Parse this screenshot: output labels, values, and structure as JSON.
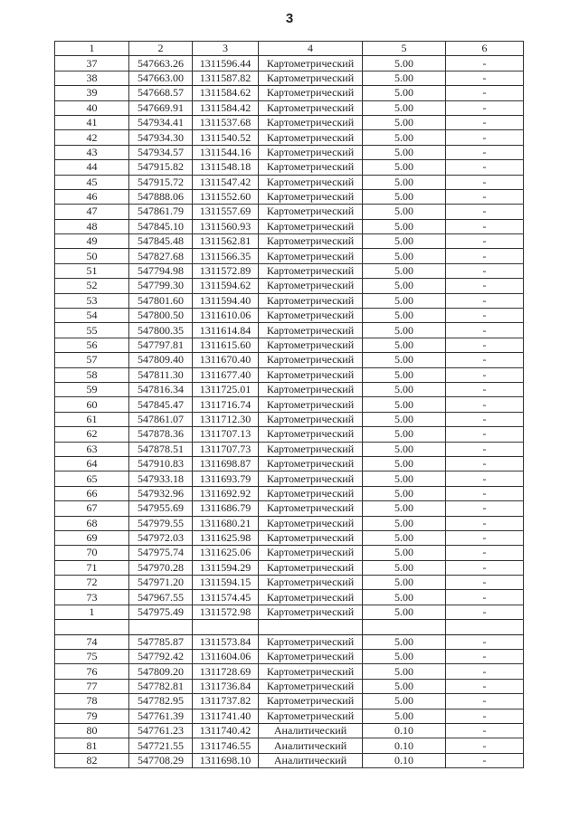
{
  "page_number": "3",
  "table": {
    "headers": [
      "1",
      "2",
      "3",
      "4",
      "5",
      "6"
    ],
    "rows": [
      [
        "37",
        "547663.26",
        "1311596.44",
        "Картометрический",
        "5.00",
        "-"
      ],
      [
        "38",
        "547663.00",
        "1311587.82",
        "Картометрический",
        "5.00",
        "-"
      ],
      [
        "39",
        "547668.57",
        "1311584.62",
        "Картометрический",
        "5.00",
        "-"
      ],
      [
        "40",
        "547669.91",
        "1311584.42",
        "Картометрический",
        "5.00",
        "-"
      ],
      [
        "41",
        "547934.41",
        "1311537.68",
        "Картометрический",
        "5.00",
        "-"
      ],
      [
        "42",
        "547934.30",
        "1311540.52",
        "Картометрический",
        "5.00",
        "-"
      ],
      [
        "43",
        "547934.57",
        "1311544.16",
        "Картометрический",
        "5.00",
        "-"
      ],
      [
        "44",
        "547915.82",
        "1311548.18",
        "Картометрический",
        "5.00",
        "-"
      ],
      [
        "45",
        "547915.72",
        "1311547.42",
        "Картометрический",
        "5.00",
        "-"
      ],
      [
        "46",
        "547888.06",
        "1311552.60",
        "Картометрический",
        "5.00",
        "-"
      ],
      [
        "47",
        "547861.79",
        "1311557.69",
        "Картометрический",
        "5.00",
        "-"
      ],
      [
        "48",
        "547845.10",
        "1311560.93",
        "Картометрический",
        "5.00",
        "-"
      ],
      [
        "49",
        "547845.48",
        "1311562.81",
        "Картометрический",
        "5.00",
        "-"
      ],
      [
        "50",
        "547827.68",
        "1311566.35",
        "Картометрический",
        "5.00",
        "-"
      ],
      [
        "51",
        "547794.98",
        "1311572.89",
        "Картометрический",
        "5.00",
        "-"
      ],
      [
        "52",
        "547799.30",
        "1311594.62",
        "Картометрический",
        "5.00",
        "-"
      ],
      [
        "53",
        "547801.60",
        "1311594.40",
        "Картометрический",
        "5.00",
        "-"
      ],
      [
        "54",
        "547800.50",
        "1311610.06",
        "Картометрический",
        "5.00",
        "-"
      ],
      [
        "55",
        "547800.35",
        "1311614.84",
        "Картометрический",
        "5.00",
        "-"
      ],
      [
        "56",
        "547797.81",
        "1311615.60",
        "Картометрический",
        "5.00",
        "-"
      ],
      [
        "57",
        "547809.40",
        "1311670.40",
        "Картометрический",
        "5.00",
        "-"
      ],
      [
        "58",
        "547811.30",
        "1311677.40",
        "Картометрический",
        "5.00",
        "-"
      ],
      [
        "59",
        "547816.34",
        "1311725.01",
        "Картометрический",
        "5.00",
        "-"
      ],
      [
        "60",
        "547845.47",
        "1311716.74",
        "Картометрический",
        "5.00",
        "-"
      ],
      [
        "61",
        "547861.07",
        "1311712.30",
        "Картометрический",
        "5.00",
        "-"
      ],
      [
        "62",
        "547878.36",
        "1311707.13",
        "Картометрический",
        "5.00",
        "-"
      ],
      [
        "63",
        "547878.51",
        "1311707.73",
        "Картометрический",
        "5.00",
        "-"
      ],
      [
        "64",
        "547910.83",
        "1311698.87",
        "Картометрический",
        "5.00",
        "-"
      ],
      [
        "65",
        "547933.18",
        "1311693.79",
        "Картометрический",
        "5.00",
        "-"
      ],
      [
        "66",
        "547932.96",
        "1311692.92",
        "Картометрический",
        "5.00",
        "-"
      ],
      [
        "67",
        "547955.69",
        "1311686.79",
        "Картометрический",
        "5.00",
        "-"
      ],
      [
        "68",
        "547979.55",
        "1311680.21",
        "Картометрический",
        "5.00",
        "-"
      ],
      [
        "69",
        "547972.03",
        "1311625.98",
        "Картометрический",
        "5.00",
        "-"
      ],
      [
        "70",
        "547975.74",
        "1311625.06",
        "Картометрический",
        "5.00",
        "-"
      ],
      [
        "71",
        "547970.28",
        "1311594.29",
        "Картометрический",
        "5.00",
        "-"
      ],
      [
        "72",
        "547971.20",
        "1311594.15",
        "Картометрический",
        "5.00",
        "-"
      ],
      [
        "73",
        "547967.55",
        "1311574.45",
        "Картометрический",
        "5.00",
        "-"
      ],
      [
        "1",
        "547975.49",
        "1311572.98",
        "Картометрический",
        "5.00",
        "-"
      ],
      [
        "",
        "",
        "",
        "",
        "",
        ""
      ],
      [
        "74",
        "547785.87",
        "1311573.84",
        "Картометрический",
        "5.00",
        "-"
      ],
      [
        "75",
        "547792.42",
        "1311604.06",
        "Картометрический",
        "5.00",
        "-"
      ],
      [
        "76",
        "547809.20",
        "1311728.69",
        "Картометрический",
        "5.00",
        "-"
      ],
      [
        "77",
        "547782.81",
        "1311736.84",
        "Картометрический",
        "5.00",
        "-"
      ],
      [
        "78",
        "547782.95",
        "1311737.82",
        "Картометрический",
        "5.00",
        "-"
      ],
      [
        "79",
        "547761.39",
        "1311741.40",
        "Картометрический",
        "5.00",
        "-"
      ],
      [
        "80",
        "547761.23",
        "1311740.42",
        "Аналитический",
        "0.10",
        "-"
      ],
      [
        "81",
        "547721.55",
        "1311746.55",
        "Аналитический",
        "0.10",
        "-"
      ],
      [
        "82",
        "547708.29",
        "1311698.10",
        "Аналитический",
        "0.10",
        "-"
      ]
    ]
  }
}
